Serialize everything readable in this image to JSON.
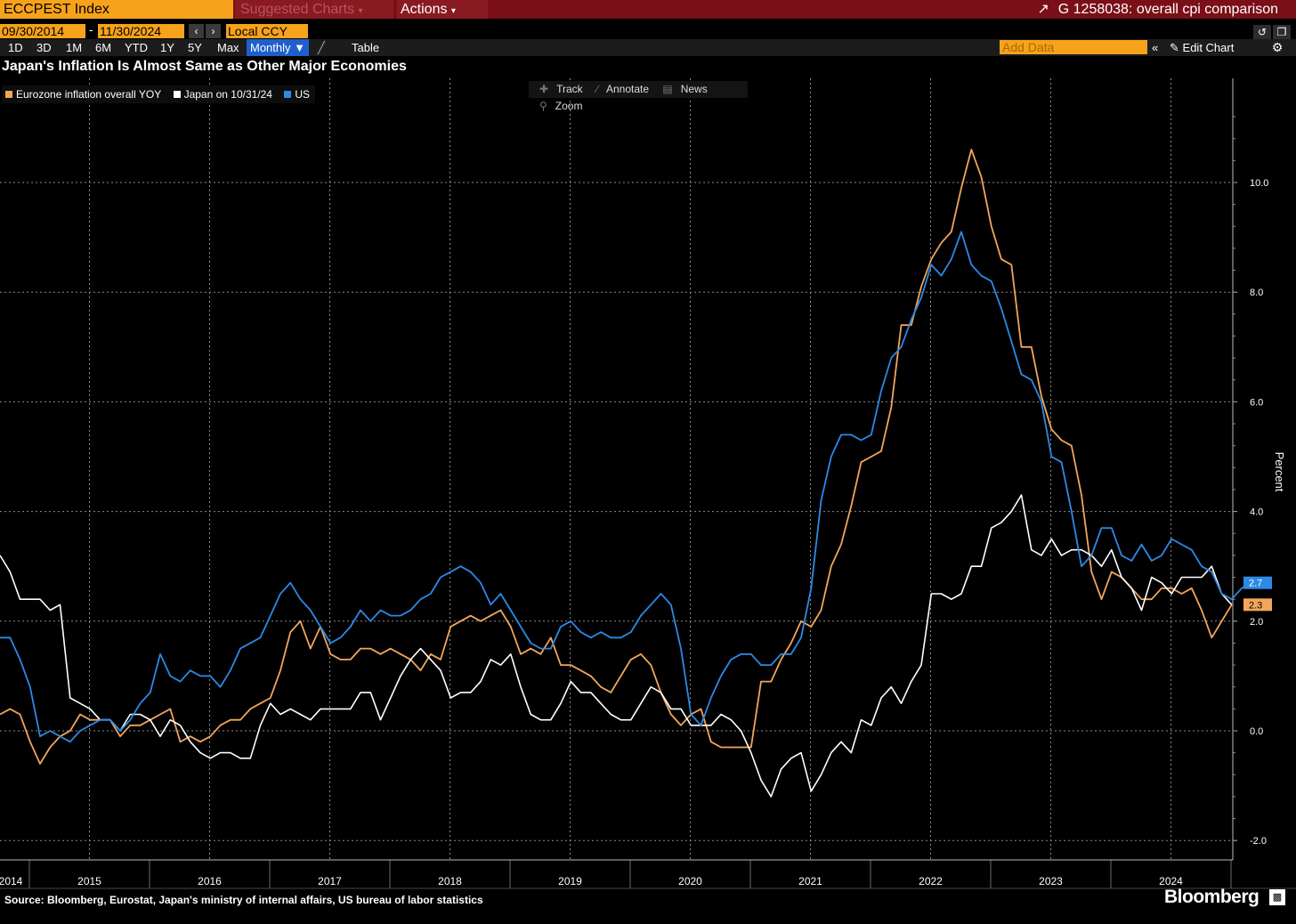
{
  "command_bar": {
    "ticker": "ECCPEST Index",
    "suggested_charts": "Suggested Charts",
    "actions": "Actions",
    "chart_id_title": "G 1258038: overall cpi comparison"
  },
  "date_range": {
    "start": "09/30/2014",
    "end": "11/30/2024",
    "currency": "Local CCY"
  },
  "toolbar": {
    "periods": [
      "1D",
      "3D",
      "1M",
      "6M",
      "YTD",
      "1Y",
      "5Y",
      "Max"
    ],
    "frequency": "Monthly ▼",
    "table": "Table",
    "add_data_placeholder": "Add Data",
    "edit_chart": "Edit Chart"
  },
  "chart_tools": [
    "Track",
    "Annotate",
    "News",
    "Zoom"
  ],
  "footer": {
    "source": "Source: Bloomberg, Eurostat, Japan's ministry of internal affairs, US bureau of labor statistics",
    "brand": "Bloomberg"
  },
  "colors": {
    "eurozone": "#f2a65a",
    "japan": "#ffffff",
    "us": "#2b8ae6",
    "background": "#000000"
  },
  "chart_data": {
    "type": "line",
    "title": "Japan's Inflation Is Almost Same as Other Major Economies",
    "ylabel": "Percent",
    "xlabel": "",
    "ylim": [
      -2.0,
      11.8
    ],
    "yticks": [
      -2.0,
      0.0,
      2.0,
      4.0,
      6.0,
      8.0,
      10.0
    ],
    "ytick_labels": [
      "-2.0",
      "0.0",
      "2.0",
      "4.0",
      "6.0",
      "8.0",
      "10.0"
    ],
    "x_tick_labels": [
      "2014",
      "2015",
      "2016",
      "2017",
      "2018",
      "2019",
      "2020",
      "2021",
      "2022",
      "2023",
      "2024"
    ],
    "x_start": "2014-09",
    "grid": true,
    "legend_position": "top-left",
    "last_value_labels": [
      {
        "series": "US",
        "value": "2.7"
      },
      {
        "series": "Eurozone inflation overall YOY",
        "value": "2.3"
      }
    ],
    "series": [
      {
        "name": "Eurozone inflation overall YOY",
        "values": [
          0.3,
          0.4,
          0.3,
          -0.2,
          -0.6,
          -0.3,
          -0.1,
          0.0,
          0.3,
          0.2,
          0.2,
          0.2,
          -0.1,
          0.1,
          0.1,
          0.2,
          0.3,
          0.4,
          -0.2,
          -0.1,
          -0.2,
          -0.1,
          0.1,
          0.2,
          0.2,
          0.4,
          0.5,
          0.6,
          1.1,
          1.8,
          2.0,
          1.5,
          1.9,
          1.4,
          1.3,
          1.3,
          1.5,
          1.5,
          1.4,
          1.5,
          1.4,
          1.3,
          1.1,
          1.4,
          1.3,
          1.9,
          2.0,
          2.1,
          2.0,
          2.1,
          2.2,
          1.9,
          1.4,
          1.5,
          1.4,
          1.7,
          1.2,
          1.2,
          1.1,
          1.0,
          0.8,
          0.7,
          1.0,
          1.3,
          1.4,
          1.2,
          0.7,
          0.3,
          0.1,
          0.3,
          0.4,
          -0.2,
          -0.3,
          -0.3,
          -0.3,
          -0.3,
          0.9,
          0.9,
          1.3,
          1.6,
          2.0,
          1.9,
          2.2,
          3.0,
          3.4,
          4.1,
          4.9,
          5.0,
          5.1,
          5.9,
          7.4,
          7.4,
          8.1,
          8.6,
          8.9,
          9.1,
          9.9,
          10.6,
          10.1,
          9.2,
          8.6,
          8.5,
          7.0,
          7.0,
          6.1,
          5.5,
          5.3,
          5.2,
          4.3,
          2.9,
          2.4,
          2.9,
          2.8,
          2.6,
          2.4,
          2.4,
          2.6,
          2.6,
          2.5,
          2.6,
          2.2,
          1.7,
          2.0,
          2.3
        ]
      },
      {
        "name": "Japan on 10/31/24",
        "values": [
          3.2,
          2.9,
          2.4,
          2.4,
          2.4,
          2.2,
          2.3,
          0.6,
          0.5,
          0.4,
          0.2,
          0.2,
          0.0,
          0.3,
          0.3,
          0.2,
          -0.1,
          0.2,
          0.1,
          -0.2,
          -0.4,
          -0.5,
          -0.4,
          -0.4,
          -0.5,
          -0.5,
          0.1,
          0.5,
          0.3,
          0.4,
          0.3,
          0.2,
          0.4,
          0.4,
          0.4,
          0.4,
          0.7,
          0.7,
          0.2,
          0.6,
          1.0,
          1.3,
          1.5,
          1.3,
          1.1,
          0.6,
          0.7,
          0.7,
          0.9,
          1.3,
          1.2,
          1.4,
          0.8,
          0.3,
          0.2,
          0.2,
          0.5,
          0.9,
          0.7,
          0.7,
          0.5,
          0.3,
          0.2,
          0.2,
          0.5,
          0.8,
          0.7,
          0.4,
          0.4,
          0.1,
          0.1,
          0.1,
          0.3,
          0.2,
          0.0,
          -0.4,
          -0.9,
          -1.2,
          -0.7,
          -0.5,
          -0.4,
          -1.1,
          -0.8,
          -0.4,
          -0.2,
          -0.4,
          0.2,
          0.1,
          0.6,
          0.8,
          0.5,
          0.9,
          1.2,
          2.5,
          2.5,
          2.4,
          2.5,
          3.0,
          3.0,
          3.7,
          3.8,
          4.0,
          4.3,
          3.3,
          3.2,
          3.5,
          3.2,
          3.3,
          3.3,
          3.2,
          3.0,
          3.3,
          2.8,
          2.6,
          2.2,
          2.8,
          2.7,
          2.5,
          2.8,
          2.8,
          2.8,
          3.0,
          2.5,
          2.3
        ]
      },
      {
        "name": "US",
        "values": [
          1.7,
          1.7,
          1.3,
          0.8,
          -0.1,
          0.0,
          -0.1,
          -0.2,
          0.0,
          0.1,
          0.2,
          0.2,
          0.0,
          0.2,
          0.5,
          0.7,
          1.4,
          1.0,
          0.9,
          1.1,
          1.0,
          1.0,
          0.8,
          1.1,
          1.5,
          1.6,
          1.7,
          2.1,
          2.5,
          2.7,
          2.4,
          2.2,
          1.9,
          1.6,
          1.7,
          1.9,
          2.2,
          2.0,
          2.2,
          2.1,
          2.1,
          2.2,
          2.4,
          2.5,
          2.8,
          2.9,
          3.0,
          2.9,
          2.7,
          2.3,
          2.5,
          2.2,
          1.9,
          1.6,
          1.5,
          1.5,
          1.9,
          2.0,
          1.8,
          1.7,
          1.8,
          1.7,
          1.7,
          1.8,
          2.1,
          2.3,
          2.5,
          2.3,
          1.5,
          0.3,
          0.1,
          0.6,
          1.0,
          1.3,
          1.4,
          1.4,
          1.2,
          1.2,
          1.4,
          1.4,
          1.7,
          2.6,
          4.2,
          5.0,
          5.4,
          5.4,
          5.3,
          5.4,
          6.2,
          6.8,
          7.0,
          7.5,
          7.9,
          8.5,
          8.3,
          8.6,
          9.1,
          8.5,
          8.3,
          8.2,
          7.7,
          7.1,
          6.5,
          6.4,
          6.0,
          5.0,
          4.9,
          4.0,
          3.0,
          3.2,
          3.7,
          3.7,
          3.2,
          3.1,
          3.4,
          3.1,
          3.2,
          3.5,
          3.4,
          3.3,
          3.0,
          2.9,
          2.5,
          2.4,
          2.6,
          2.7
        ]
      }
    ]
  }
}
